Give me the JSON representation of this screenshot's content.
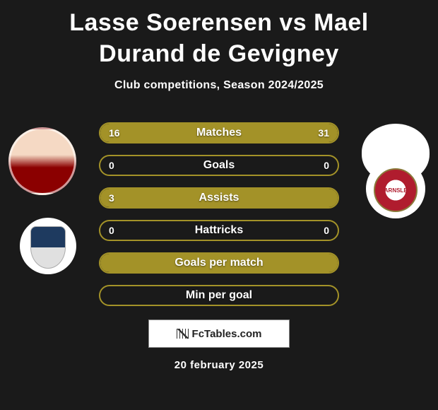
{
  "title": "Lasse Soerensen vs Mael Durand de Gevigney",
  "subtitle": "Club competitions, Season 2024/2025",
  "date": "20 february 2025",
  "watermark": "FcTables.com",
  "colors": {
    "bar_border": "#a39228",
    "bar_fill": "#a39228",
    "bg": "#1a1a1a",
    "text": "#ffffff"
  },
  "bars": [
    {
      "label": "Matches",
      "left": "16",
      "right": "31",
      "left_pct": 34,
      "right_pct": 66,
      "show_vals": true
    },
    {
      "label": "Goals",
      "left": "0",
      "right": "0",
      "left_pct": 0,
      "right_pct": 0,
      "show_vals": true
    },
    {
      "label": "Assists",
      "left": "3",
      "right": "",
      "left_pct": 100,
      "right_pct": 0,
      "show_vals": true
    },
    {
      "label": "Hattricks",
      "left": "0",
      "right": "0",
      "left_pct": 0,
      "right_pct": 0,
      "show_vals": true
    },
    {
      "label": "Goals per match",
      "left": "",
      "right": "",
      "left_pct": 100,
      "right_pct": 0,
      "show_vals": false
    },
    {
      "label": "Min per goal",
      "left": "",
      "right": "",
      "left_pct": 0,
      "right_pct": 0,
      "show_vals": false
    }
  ],
  "player1": {
    "name": "Lasse Soerensen",
    "club": "Huddersfield"
  },
  "player2": {
    "name": "Mael Durand de Gevigney",
    "club": "Barnsley"
  }
}
